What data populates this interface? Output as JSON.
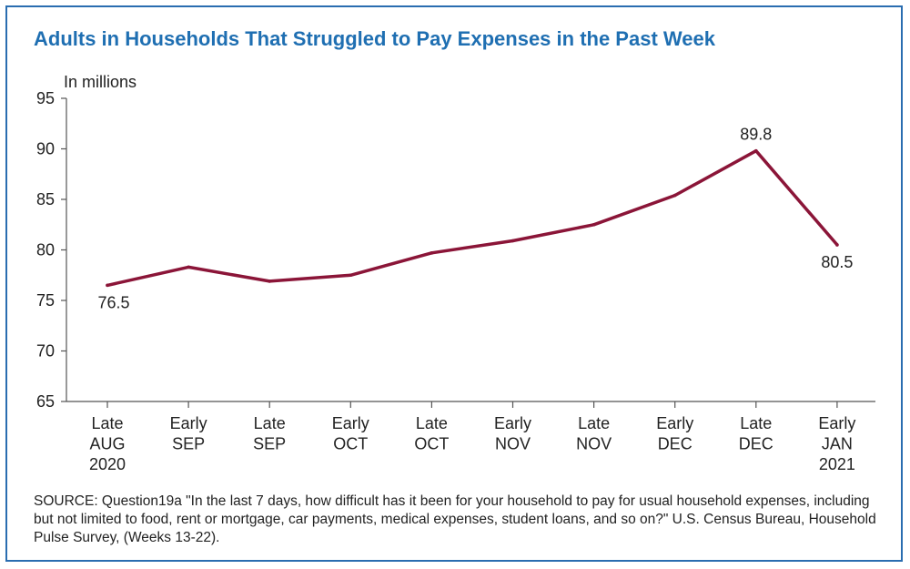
{
  "chart_data": {
    "type": "line",
    "title": "Adults in Households That Struggled to Pay Expenses in the Past Week",
    "ylabel": "In millions",
    "xlabel": "",
    "categories": [
      [
        "Late",
        "AUG",
        "2020"
      ],
      [
        "Early",
        "SEP"
      ],
      [
        "Late",
        "SEP"
      ],
      [
        "Early",
        "OCT"
      ],
      [
        "Late",
        "OCT"
      ],
      [
        "Early",
        "NOV"
      ],
      [
        "Late",
        "NOV"
      ],
      [
        "Early",
        "DEC"
      ],
      [
        "Late",
        "DEC"
      ],
      [
        "Early",
        "JAN",
        "2021"
      ]
    ],
    "series": [
      {
        "values": [
          76.5,
          78.3,
          76.9,
          77.5,
          79.7,
          80.9,
          82.5,
          85.4,
          89.8,
          80.5
        ],
        "color": "#8b1538"
      }
    ],
    "data_labels": [
      {
        "index": 0,
        "text": "76.5"
      },
      {
        "index": 8,
        "text": "89.8"
      },
      {
        "index": 9,
        "text": "80.5"
      }
    ],
    "ylim": [
      65,
      95
    ],
    "yticks": [
      65,
      70,
      75,
      80,
      85,
      90,
      95
    ],
    "grid": false,
    "legend": "none"
  },
  "source_note": "SOURCE: Question19a \"In the last 7 days, how difficult has it been for your household to pay for usual household expenses, including but not limited to food, rent or mortgage, car payments, medical expenses, student loans, and so on?\" U.S. Census Bureau, Household Pulse Survey, (Weeks 13-22).",
  "colors": {
    "title": "#1f6fb2",
    "frame": "#2a6db0",
    "line": "#8b1538",
    "axis": "#555555"
  }
}
